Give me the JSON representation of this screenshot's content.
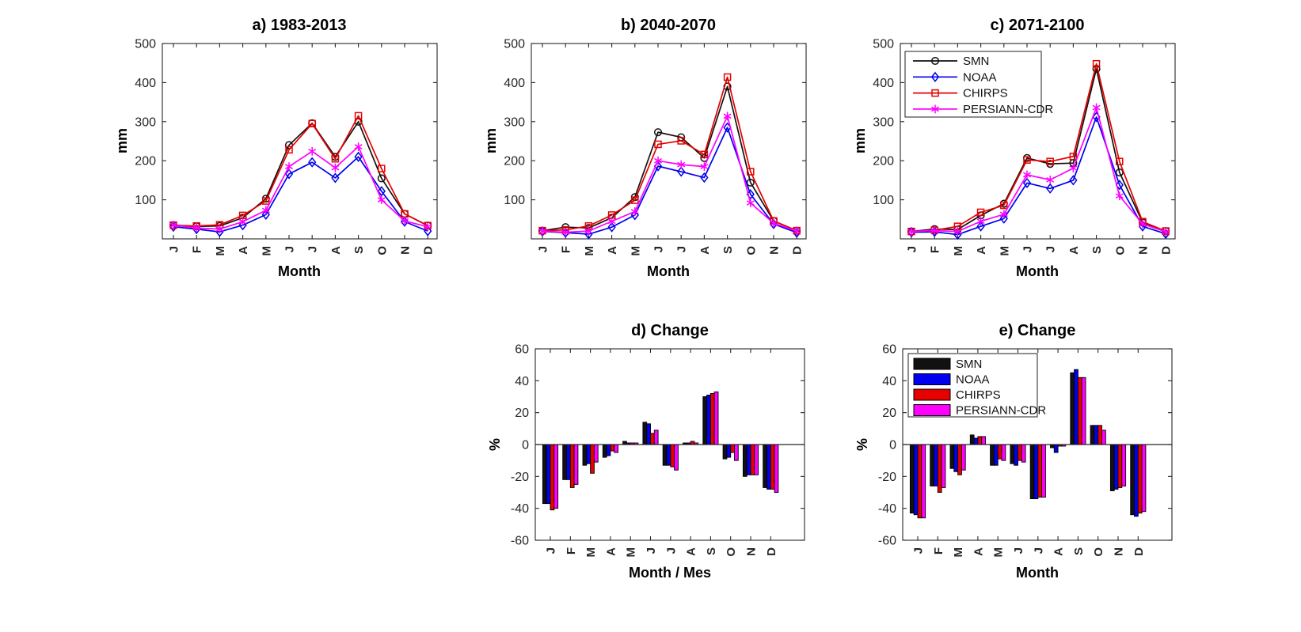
{
  "figure": {
    "background": "#ffffff",
    "axis_color": "#262626",
    "tick_label_color": "#262626",
    "months": [
      "J",
      "F",
      "M",
      "A",
      "M",
      "J",
      "J",
      "A",
      "S",
      "O",
      "N",
      "D"
    ],
    "series_colors": {
      "SMN": "#111111",
      "NOAA": "#0000ee",
      "CHIRPS": "#e60000",
      "PERSIANN-CDR": "#ff00ff"
    }
  },
  "chart_data": [
    {
      "id": "a",
      "type": "line",
      "title": "a) 1983-2013",
      "xlabel": "Month",
      "ylabel": "mm",
      "ylim": [
        0,
        500
      ],
      "yticks": [
        100,
        200,
        300,
        400,
        500
      ],
      "grid": false,
      "legend": false,
      "categories": [
        "J",
        "F",
        "M",
        "A",
        "M",
        "J",
        "J",
        "A",
        "S",
        "O",
        "N",
        "D"
      ],
      "series": [
        {
          "name": "SMN",
          "marker": "circle",
          "color": "#111111",
          "values": [
            35,
            32,
            33,
            54,
            103,
            240,
            296,
            210,
            300,
            155,
            64,
            34
          ]
        },
        {
          "name": "NOAA",
          "marker": "diamond",
          "color": "#0000ee",
          "values": [
            31,
            25,
            18,
            35,
            62,
            166,
            196,
            156,
            210,
            122,
            44,
            20
          ]
        },
        {
          "name": "CHIRPS",
          "marker": "square",
          "color": "#e60000",
          "values": [
            35,
            33,
            36,
            60,
            97,
            228,
            295,
            205,
            315,
            180,
            64,
            34
          ]
        },
        {
          "name": "PERSIANN-CDR",
          "marker": "asterisk",
          "color": "#ff00ff",
          "values": [
            35,
            28,
            25,
            44,
            73,
            185,
            224,
            182,
            236,
            100,
            46,
            31
          ]
        }
      ]
    },
    {
      "id": "b",
      "type": "line",
      "title": "b) 2040-2070",
      "xlabel": "Month",
      "ylabel": "mm",
      "ylim": [
        0,
        500
      ],
      "yticks": [
        100,
        200,
        300,
        400,
        500
      ],
      "grid": false,
      "legend": false,
      "categories": [
        "J",
        "F",
        "M",
        "A",
        "M",
        "J",
        "J",
        "A",
        "S",
        "O",
        "N",
        "D"
      ],
      "series": [
        {
          "name": "SMN",
          "marker": "circle",
          "color": "#111111",
          "values": [
            21,
            30,
            28,
            54,
            107,
            273,
            260,
            207,
            390,
            144,
            46,
            21
          ]
        },
        {
          "name": "NOAA",
          "marker": "diamond",
          "color": "#0000ee",
          "values": [
            19,
            16,
            12,
            30,
            61,
            186,
            172,
            157,
            285,
            114,
            38,
            16
          ]
        },
        {
          "name": "CHIRPS",
          "marker": "square",
          "color": "#e60000",
          "values": [
            21,
            23,
            33,
            61,
            99,
            242,
            251,
            216,
            414,
            172,
            46,
            21
          ]
        },
        {
          "name": "PERSIANN-CDR",
          "marker": "asterisk",
          "color": "#ff00ff",
          "values": [
            20,
            17,
            20,
            45,
            70,
            200,
            190,
            185,
            314,
            92,
            40,
            20
          ]
        }
      ]
    },
    {
      "id": "c",
      "type": "line",
      "title": "c) 2071-2100",
      "xlabel": "Month",
      "ylabel": "mm",
      "ylim": [
        0,
        500
      ],
      "yticks": [
        100,
        200,
        300,
        400,
        500
      ],
      "grid": false,
      "legend": true,
      "legend_style": "line",
      "legend_position": "top-left-inside",
      "categories": [
        "J",
        "F",
        "M",
        "A",
        "M",
        "J",
        "J",
        "A",
        "S",
        "O",
        "N",
        "D"
      ],
      "series": [
        {
          "name": "SMN",
          "marker": "circle",
          "color": "#111111",
          "values": [
            19,
            25,
            24,
            60,
            90,
            207,
            192,
            194,
            435,
            170,
            42,
            20
          ]
        },
        {
          "name": "NOAA",
          "marker": "diamond",
          "color": "#0000ee",
          "values": [
            17,
            18,
            11,
            32,
            52,
            143,
            129,
            150,
            312,
            138,
            32,
            13
          ]
        },
        {
          "name": "CHIRPS",
          "marker": "square",
          "color": "#e60000",
          "values": [
            19,
            22,
            32,
            68,
            86,
            202,
            198,
            211,
            448,
            198,
            44,
            20
          ]
        },
        {
          "name": "PERSIANN-CDR",
          "marker": "asterisk",
          "color": "#ff00ff",
          "values": [
            19,
            21,
            19,
            45,
            63,
            164,
            151,
            181,
            336,
            110,
            38,
            18
          ]
        }
      ]
    },
    {
      "id": "d",
      "type": "bar",
      "title": "d) Change",
      "xlabel": "Month / Mes",
      "ylabel": "%",
      "ylim": [
        -60,
        60
      ],
      "yticks": [
        -60,
        -40,
        -20,
        0,
        20,
        40,
        60
      ],
      "grid": false,
      "legend": false,
      "categories": [
        "J",
        "F",
        "M",
        "A",
        "M",
        "J",
        "J",
        "A",
        "S",
        "O",
        "N",
        "D"
      ],
      "series": [
        {
          "name": "SMN",
          "color": "#111111",
          "values": [
            -37,
            -22,
            -13,
            -8,
            2,
            14,
            -13,
            1,
            30,
            -9,
            -20,
            -27
          ]
        },
        {
          "name": "NOAA",
          "color": "#0000ee",
          "values": [
            -37,
            -22,
            -12,
            -7,
            1,
            13,
            -13,
            1,
            31,
            -8,
            -19,
            -28
          ]
        },
        {
          "name": "CHIRPS",
          "color": "#e60000",
          "values": [
            -41,
            -27,
            -18,
            -4,
            1,
            7,
            -14,
            2,
            32,
            -5,
            -19,
            -28
          ]
        },
        {
          "name": "PERSIANN-CDR",
          "color": "#ff00ff",
          "values": [
            -40,
            -25,
            -11,
            -5,
            1,
            9,
            -16,
            1,
            33,
            -10,
            -19,
            -30
          ]
        }
      ]
    },
    {
      "id": "e",
      "type": "bar",
      "title": "e) Change",
      "xlabel": "Month",
      "ylabel": "%",
      "ylim": [
        -60,
        60
      ],
      "yticks": [
        -60,
        -40,
        -20,
        0,
        20,
        40,
        60
      ],
      "grid": false,
      "legend": true,
      "legend_style": "patch",
      "legend_position": "top-left-inside",
      "categories": [
        "J",
        "F",
        "M",
        "A",
        "M",
        "J",
        "J",
        "A",
        "S",
        "O",
        "N",
        "D"
      ],
      "series": [
        {
          "name": "SMN",
          "color": "#111111",
          "values": [
            -43,
            -26,
            -15,
            6,
            -13,
            -12,
            -34,
            -2,
            45,
            12,
            -29,
            -44
          ]
        },
        {
          "name": "NOAA",
          "color": "#0000ee",
          "values": [
            -44,
            -26,
            -17,
            4,
            -13,
            -13,
            -34,
            -5,
            47,
            12,
            -28,
            -45
          ]
        },
        {
          "name": "CHIRPS",
          "color": "#e60000",
          "values": [
            -46,
            -30,
            -19,
            5,
            -9,
            -10,
            -33,
            -1,
            42,
            12,
            -27,
            -43
          ]
        },
        {
          "name": "PERSIANN-CDR",
          "color": "#ff00ff",
          "values": [
            -46,
            -27,
            -16,
            5,
            -10,
            -11,
            -33,
            -1,
            42,
            9,
            -26,
            -42
          ]
        }
      ]
    }
  ]
}
